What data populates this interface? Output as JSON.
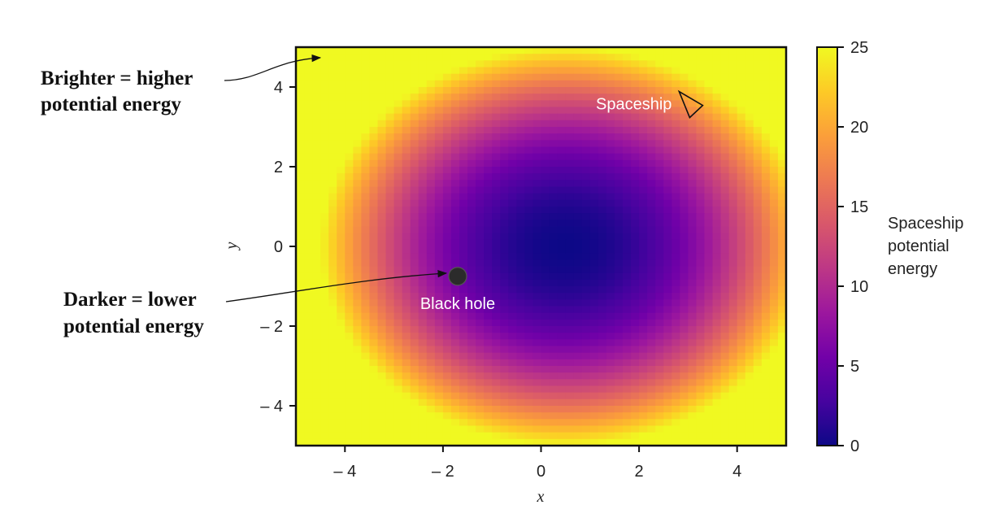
{
  "chart_data": {
    "type": "heatmap",
    "xlabel": "x",
    "ylabel": "y",
    "xlim": [
      -5,
      5
    ],
    "ylim": [
      -5,
      5
    ],
    "x_ticks": [
      -4,
      -2,
      0,
      2,
      4
    ],
    "y_ticks": [
      -4,
      -2,
      0,
      2,
      4
    ],
    "x_tick_labels": [
      "– 4",
      "– 2",
      "0",
      "2",
      "4"
    ],
    "y_tick_labels": [
      "– 4",
      "– 2",
      "0",
      "2",
      "4"
    ],
    "value_range": [
      0,
      25
    ],
    "potential_center": [
      0.5,
      0
    ],
    "colormap": "plasma",
    "colormap_stops": [
      "#0d0887",
      "#46039f",
      "#7201a8",
      "#9c179e",
      "#bd3786",
      "#d8576b",
      "#ed7953",
      "#fb9f3a",
      "#fdca26",
      "#f0f921"
    ],
    "colorbar": {
      "ticks": [
        0,
        5,
        10,
        15,
        20,
        25
      ],
      "label_lines": [
        "Spaceship",
        "potential",
        "energy"
      ]
    },
    "markers": [
      {
        "name": "black-hole",
        "label": "Black hole",
        "x": -1.7,
        "y": -0.75,
        "shape": "circle",
        "color": "#2b2b2b"
      },
      {
        "name": "spaceship",
        "label": "Spaceship",
        "x": 3.0,
        "y": 3.6,
        "shape": "triangle"
      }
    ],
    "grid": false
  },
  "callouts": {
    "brighter_line1": "Brighter = higher",
    "brighter_line2": "potential energy",
    "darker_line1": "Darker = lower",
    "darker_line2": "potential energy"
  }
}
